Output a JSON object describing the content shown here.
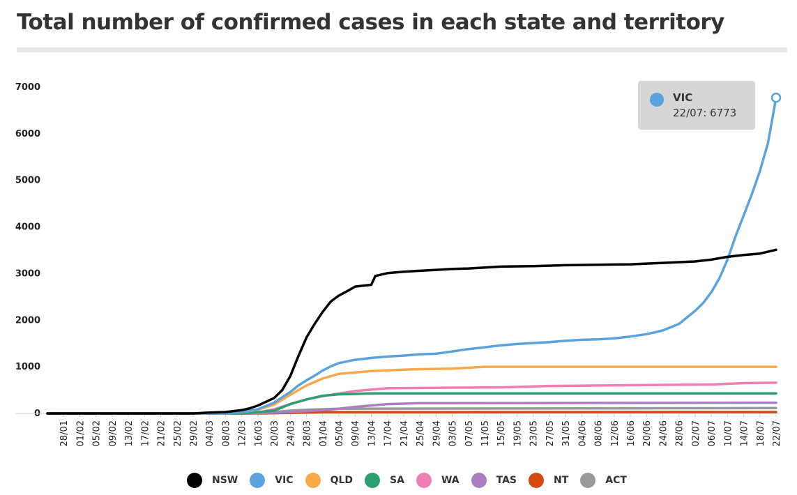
{
  "header": {
    "title": "Total number of confirmed cases in each state and territory"
  },
  "tooltip": {
    "series": "VIC",
    "date": "22/07",
    "value": 6773,
    "text": "22/07: 6773"
  },
  "chart_data": {
    "type": "line",
    "title": "Total number of confirmed cases in each state and territory",
    "xlabel": "",
    "ylabel": "",
    "ylim": [
      0,
      7000
    ],
    "yticks": [
      0,
      1000,
      2000,
      3000,
      4000,
      5000,
      6000,
      7000
    ],
    "x_tick_labels": [
      "28/01",
      "01/02",
      "05/02",
      "09/02",
      "13/02",
      "17/02",
      "21/02",
      "25/02",
      "29/02",
      "04/03",
      "08/03",
      "12/03",
      "16/03",
      "20/03",
      "24/03",
      "28/03",
      "01/04",
      "05/04",
      "09/04",
      "13/04",
      "17/04",
      "21/04",
      "25/04",
      "29/04",
      "03/05",
      "07/05",
      "11/05",
      "15/05",
      "19/05",
      "23/05",
      "27/05",
      "31/05",
      "04/06",
      "08/06",
      "12/06",
      "16/06",
      "20/06",
      "24/06",
      "28/06",
      "02/07",
      "06/07",
      "10/07",
      "14/07",
      "18/07",
      "22/07"
    ],
    "grid": false,
    "legend_position": "bottom",
    "series": [
      {
        "name": "NSW",
        "color": "#000000",
        "points": [
          [
            "24/01",
            0
          ],
          [
            "29/02",
            0
          ],
          [
            "04/03",
            20
          ],
          [
            "08/03",
            30
          ],
          [
            "12/03",
            70
          ],
          [
            "14/03",
            110
          ],
          [
            "16/03",
            170
          ],
          [
            "18/03",
            250
          ],
          [
            "20/03",
            330
          ],
          [
            "22/03",
            500
          ],
          [
            "24/03",
            800
          ],
          [
            "26/03",
            1230
          ],
          [
            "28/03",
            1630
          ],
          [
            "30/03",
            1920
          ],
          [
            "01/04",
            2180
          ],
          [
            "03/04",
            2400
          ],
          [
            "05/04",
            2530
          ],
          [
            "07/04",
            2620
          ],
          [
            "09/04",
            2720
          ],
          [
            "11/04",
            2740
          ],
          [
            "13/04",
            2760
          ],
          [
            "14/04",
            2950
          ],
          [
            "17/04",
            3010
          ],
          [
            "21/04",
            3040
          ],
          [
            "25/04",
            3060
          ],
          [
            "29/04",
            3080
          ],
          [
            "03/05",
            3100
          ],
          [
            "07/05",
            3110
          ],
          [
            "11/05",
            3130
          ],
          [
            "15/05",
            3150
          ],
          [
            "23/05",
            3160
          ],
          [
            "31/05",
            3180
          ],
          [
            "08/06",
            3190
          ],
          [
            "16/06",
            3200
          ],
          [
            "24/06",
            3230
          ],
          [
            "02/07",
            3260
          ],
          [
            "06/07",
            3300
          ],
          [
            "10/07",
            3360
          ],
          [
            "14/07",
            3400
          ],
          [
            "18/07",
            3430
          ],
          [
            "22/07",
            3510
          ]
        ]
      },
      {
        "name": "VIC",
        "color": "#5aa3dc",
        "points": [
          [
            "24/01",
            0
          ],
          [
            "08/03",
            0
          ],
          [
            "12/03",
            30
          ],
          [
            "16/03",
            90
          ],
          [
            "20/03",
            230
          ],
          [
            "24/03",
            460
          ],
          [
            "26/03",
            600
          ],
          [
            "28/03",
            710
          ],
          [
            "30/03",
            810
          ],
          [
            "01/04",
            920
          ],
          [
            "03/04",
            1010
          ],
          [
            "05/04",
            1080
          ],
          [
            "09/04",
            1150
          ],
          [
            "13/04",
            1190
          ],
          [
            "17/04",
            1220
          ],
          [
            "21/04",
            1240
          ],
          [
            "25/04",
            1270
          ],
          [
            "29/04",
            1280
          ],
          [
            "03/05",
            1330
          ],
          [
            "07/05",
            1380
          ],
          [
            "11/05",
            1420
          ],
          [
            "15/05",
            1460
          ],
          [
            "19/05",
            1490
          ],
          [
            "23/05",
            1510
          ],
          [
            "27/05",
            1530
          ],
          [
            "31/05",
            1560
          ],
          [
            "04/06",
            1580
          ],
          [
            "08/06",
            1590
          ],
          [
            "12/06",
            1610
          ],
          [
            "16/06",
            1650
          ],
          [
            "20/06",
            1700
          ],
          [
            "24/06",
            1780
          ],
          [
            "28/06",
            1920
          ],
          [
            "02/07",
            2200
          ],
          [
            "04/07",
            2370
          ],
          [
            "06/07",
            2600
          ],
          [
            "08/07",
            2900
          ],
          [
            "10/07",
            3300
          ],
          [
            "12/07",
            3800
          ],
          [
            "14/07",
            4250
          ],
          [
            "16/07",
            4700
          ],
          [
            "18/07",
            5200
          ],
          [
            "20/07",
            5800
          ],
          [
            "22/07",
            6773
          ]
        ]
      },
      {
        "name": "QLD",
        "color": "#f8a94a",
        "points": [
          [
            "24/01",
            0
          ],
          [
            "04/03",
            0
          ],
          [
            "12/03",
            25
          ],
          [
            "16/03",
            80
          ],
          [
            "20/03",
            190
          ],
          [
            "24/03",
            400
          ],
          [
            "28/03",
            600
          ],
          [
            "01/04",
            750
          ],
          [
            "05/04",
            850
          ],
          [
            "09/04",
            880
          ],
          [
            "13/04",
            910
          ],
          [
            "21/04",
            940
          ],
          [
            "25/04",
            950
          ],
          [
            "03/05",
            960
          ],
          [
            "11/05",
            1000
          ],
          [
            "22/07",
            1000
          ]
        ]
      },
      {
        "name": "SA",
        "color": "#2e9e6e",
        "points": [
          [
            "24/01",
            0
          ],
          [
            "12/03",
            0
          ],
          [
            "20/03",
            60
          ],
          [
            "24/03",
            200
          ],
          [
            "28/03",
            300
          ],
          [
            "01/04",
            380
          ],
          [
            "05/04",
            410
          ],
          [
            "13/04",
            430
          ],
          [
            "22/07",
            430
          ]
        ]
      },
      {
        "name": "WA",
        "color": "#f07fb5",
        "points": [
          [
            "24/01",
            0
          ],
          [
            "10/03",
            0
          ],
          [
            "16/03",
            20
          ],
          [
            "20/03",
            90
          ],
          [
            "24/03",
            200
          ],
          [
            "28/03",
            300
          ],
          [
            "01/04",
            370
          ],
          [
            "05/04",
            430
          ],
          [
            "09/04",
            480
          ],
          [
            "13/04",
            510
          ],
          [
            "17/04",
            540
          ],
          [
            "29/04",
            550
          ],
          [
            "15/05",
            560
          ],
          [
            "27/05",
            590
          ],
          [
            "06/07",
            620
          ],
          [
            "14/07",
            650
          ],
          [
            "22/07",
            660
          ]
        ]
      },
      {
        "name": "TAS",
        "color": "#a97fc0",
        "points": [
          [
            "24/01",
            0
          ],
          [
            "14/03",
            0
          ],
          [
            "24/03",
            30
          ],
          [
            "01/04",
            70
          ],
          [
            "05/04",
            100
          ],
          [
            "09/04",
            140
          ],
          [
            "13/04",
            170
          ],
          [
            "17/04",
            200
          ],
          [
            "21/04",
            210
          ],
          [
            "25/04",
            220
          ],
          [
            "22/07",
            230
          ]
        ]
      },
      {
        "name": "NT",
        "color": "#d24a10",
        "points": [
          [
            "24/01",
            0
          ],
          [
            "16/03",
            0
          ],
          [
            "24/03",
            10
          ],
          [
            "28/03",
            20
          ],
          [
            "01/04",
            28
          ],
          [
            "22/07",
            30
          ]
        ]
      },
      {
        "name": "ACT",
        "color": "#999999",
        "points": [
          [
            "24/01",
            0
          ],
          [
            "14/03",
            0
          ],
          [
            "20/03",
            30
          ],
          [
            "24/03",
            60
          ],
          [
            "28/03",
            80
          ],
          [
            "01/04",
            90
          ],
          [
            "05/04",
            100
          ],
          [
            "22/07",
            115
          ]
        ]
      }
    ]
  }
}
